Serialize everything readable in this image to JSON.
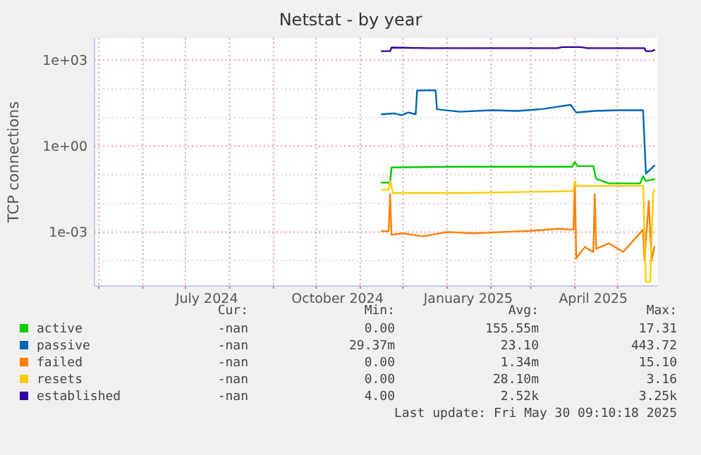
{
  "chart_data": {
    "type": "line",
    "title": "Netstat - by year",
    "ylabel": "TCP connections",
    "log": true,
    "grid": true,
    "legend": "bottom left",
    "xlim": [
      "2024-04-28",
      "2025-05-29"
    ],
    "xticks": [
      {
        "value": "2024-05-01",
        "label": null
      },
      {
        "value": "2024-06-01",
        "label": null
      },
      {
        "value": "2024-07-01",
        "label": null
      },
      {
        "value": "2024-07-16",
        "label": "July 2024"
      },
      {
        "value": "2024-08-01",
        "label": null
      },
      {
        "value": "2024-09-01",
        "label": null
      },
      {
        "value": "2024-10-01",
        "label": null
      },
      {
        "value": "2024-10-16",
        "label": "October 2024"
      },
      {
        "value": "2024-11-01",
        "label": null
      },
      {
        "value": "2024-12-01",
        "label": null
      },
      {
        "value": "2025-01-01",
        "label": null
      },
      {
        "value": "2025-01-16",
        "label": "January 2025"
      },
      {
        "value": "2025-02-01",
        "label": null
      },
      {
        "value": "2025-03-01",
        "label": null
      },
      {
        "value": "2025-04-01",
        "label": null
      },
      {
        "value": "2025-04-14",
        "label": "April 2025"
      },
      {
        "value": "2025-05-01",
        "label": null
      }
    ],
    "ylim": [
      1.3e-05,
      6000
    ],
    "yticks": [
      {
        "value": 0.0001,
        "label": null
      },
      {
        "value": 0.001,
        "label": "1e-03"
      },
      {
        "value": 0.01,
        "label": null
      },
      {
        "value": 0.1,
        "label": null
      },
      {
        "value": 1,
        "label": "1e+00"
      },
      {
        "value": 10,
        "label": null
      },
      {
        "value": 100,
        "label": null
      },
      {
        "value": 1000,
        "label": "1e+03"
      }
    ],
    "series": [
      {
        "name": "active",
        "color": "#00cc00",
        "x": [
          "2024-11-16",
          "2024-11-22",
          "2024-11-23",
          "2025-01-07",
          "2025-03-30",
          "2025-04-01",
          "2025-04-03",
          "2025-04-14",
          "2025-04-16",
          "2025-04-25",
          "2025-05-17",
          "2025-05-19",
          "2025-05-21",
          "2025-05-27"
        ],
        "values": [
          0.053,
          0.053,
          0.18,
          0.19,
          0.19,
          0.28,
          0.2,
          0.2,
          0.072,
          0.05,
          0.05,
          0.09,
          0.06,
          0.07
        ]
      },
      {
        "name": "passive",
        "color": "#0066b3",
        "x": [
          "2024-11-16",
          "2024-11-25",
          "2024-11-30",
          "2024-12-05",
          "2024-12-10",
          "2024-12-11",
          "2024-12-24",
          "2024-12-25",
          "2025-01-10",
          "2025-02-01",
          "2025-02-20",
          "2025-03-10",
          "2025-03-29",
          "2025-04-02",
          "2025-04-15",
          "2025-05-01",
          "2025-05-19",
          "2025-05-21",
          "2025-05-27"
        ],
        "values": [
          13,
          14,
          12,
          15,
          13,
          88,
          90,
          19.5,
          16,
          18,
          17,
          20,
          28,
          15,
          17,
          18,
          18,
          0.11,
          0.21
        ]
      },
      {
        "name": "failed",
        "color": "#ff8000",
        "x": [
          "2024-11-16",
          "2024-11-21",
          "2024-11-22",
          "2024-11-23",
          "2024-12-01",
          "2024-12-15",
          "2025-01-01",
          "2025-01-20",
          "2025-02-10",
          "2025-03-01",
          "2025-03-20",
          "2025-03-31",
          "2025-04-01",
          "2025-04-02",
          "2025-04-08",
          "2025-04-14",
          "2025-04-15",
          "2025-04-16",
          "2025-04-25",
          "2025-05-05",
          "2025-05-19",
          "2025-05-20",
          "2025-05-23",
          "2025-05-25",
          "2025-05-27"
        ],
        "values": [
          0.00107,
          0.00107,
          0.021,
          0.0008,
          0.0009,
          0.0007,
          0.001,
          0.0009,
          0.001,
          0.0011,
          0.0013,
          0.0012,
          0.053,
          0.00012,
          0.0003,
          0.0002,
          0.021,
          0.00026,
          0.0004,
          0.0002,
          0.0012,
          0.0001,
          0.012,
          0.0001,
          0.0003
        ]
      },
      {
        "name": "resets",
        "color": "#ffcc00",
        "x": [
          "2024-11-16",
          "2024-11-21",
          "2024-11-22",
          "2024-11-24",
          "2025-01-15",
          "2025-03-31",
          "2025-04-01",
          "2025-04-02",
          "2025-05-19",
          "2025-05-21",
          "2025-05-24",
          "2025-05-26",
          "2025-05-27"
        ],
        "values": [
          0.03,
          0.03,
          0.06,
          0.023,
          0.023,
          0.027,
          0.06,
          0.041,
          0.041,
          1.8e-05,
          1.8e-05,
          0.02,
          0.03
        ]
      },
      {
        "name": "established",
        "color": "#330099",
        "x": [
          "2024-11-16",
          "2024-11-22",
          "2024-11-23",
          "2024-12-20",
          "2025-01-20",
          "2025-02-20",
          "2025-03-20",
          "2025-03-23",
          "2025-04-05",
          "2025-04-10",
          "2025-04-20",
          "2025-05-10",
          "2025-05-20",
          "2025-05-21",
          "2025-05-25",
          "2025-05-27"
        ],
        "values": [
          2090,
          2090,
          2800,
          2650,
          2650,
          2650,
          2650,
          2900,
          2900,
          2650,
          2650,
          2650,
          2650,
          2090,
          2090,
          2300
        ]
      }
    ],
    "annotations": [
      "Cur:",
      "Min:",
      "Avg:",
      "Max:",
      "-nan",
      "0.00",
      "155.55m",
      "17.31",
      "-nan",
      "29.37m",
      "23.10",
      "443.72",
      "-nan",
      "0.00",
      "1.34m",
      "15.10",
      "-nan",
      "0.00",
      "28.10m",
      "3.16",
      "-nan",
      "4.00",
      "2.52k",
      "3.25k",
      "Last update: Fri May 30 09:10:18 2025"
    ]
  }
}
